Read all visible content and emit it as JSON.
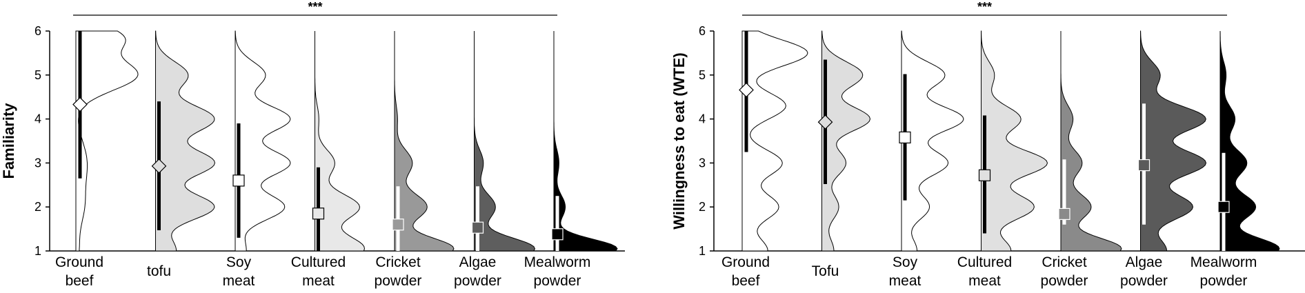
{
  "chart_data": [
    {
      "type": "violin",
      "ylabel": "Familiarity",
      "ylim": [
        1,
        6
      ],
      "yticks": [
        "1",
        "2",
        "3",
        "4",
        "5",
        "6"
      ],
      "significance": "***",
      "categories": [
        [
          "Ground",
          "beef"
        ],
        [
          "tofu"
        ],
        [
          "Soy",
          "meat"
        ],
        [
          "Cultured",
          "meat"
        ],
        [
          "Cricket",
          "powder"
        ],
        [
          "Algae",
          "powder"
        ],
        [
          "Mealworm",
          "powder"
        ]
      ],
      "means": [
        4.33,
        2.93,
        2.6,
        1.85,
        1.6,
        1.53,
        1.38
      ],
      "ci": [
        [
          2.65,
          6.0
        ],
        [
          1.47,
          4.4
        ],
        [
          1.3,
          3.9
        ],
        [
          1.0,
          2.9
        ],
        [
          1.0,
          2.47
        ],
        [
          1.0,
          2.47
        ],
        [
          1.0,
          2.25
        ]
      ],
      "fills": [
        "#ffffff",
        "#dedede",
        "#ffffff",
        "#e8e8e8",
        "#999999",
        "#5e5e5e",
        "#000000"
      ],
      "marker": [
        "diamond",
        "diamond",
        "square",
        "square",
        "square",
        "square",
        "square"
      ]
    },
    {
      "type": "violin",
      "ylabel": "Willingness to eat (WTE)",
      "ylim": [
        1,
        6
      ],
      "yticks": [
        "1",
        "2",
        "3",
        "4",
        "5",
        "6"
      ],
      "significance": "***",
      "categories": [
        [
          "Ground",
          "beef"
        ],
        [
          "Tofu"
        ],
        [
          "Soy",
          "meat"
        ],
        [
          "Cultured",
          "meat"
        ],
        [
          "Cricket",
          "powder"
        ],
        [
          "Algae",
          "powder"
        ],
        [
          "Mealworm",
          "powder"
        ]
      ],
      "means": [
        4.66,
        3.93,
        3.58,
        2.72,
        1.84,
        2.95,
        2.0
      ],
      "ci": [
        [
          3.25,
          6.0
        ],
        [
          2.52,
          5.35
        ],
        [
          2.15,
          5.02
        ],
        [
          1.4,
          4.08
        ],
        [
          1.6,
          3.08
        ],
        [
          1.6,
          4.35
        ],
        [
          1.0,
          3.23
        ]
      ],
      "fills": [
        "#ffffff",
        "#dedede",
        "#ffffff",
        "#e0e0e0",
        "#8a8a8a",
        "#5a5a5a",
        "#000000"
      ],
      "marker": [
        "diamond",
        "diamond",
        "square",
        "square",
        "square",
        "square",
        "square"
      ]
    }
  ]
}
